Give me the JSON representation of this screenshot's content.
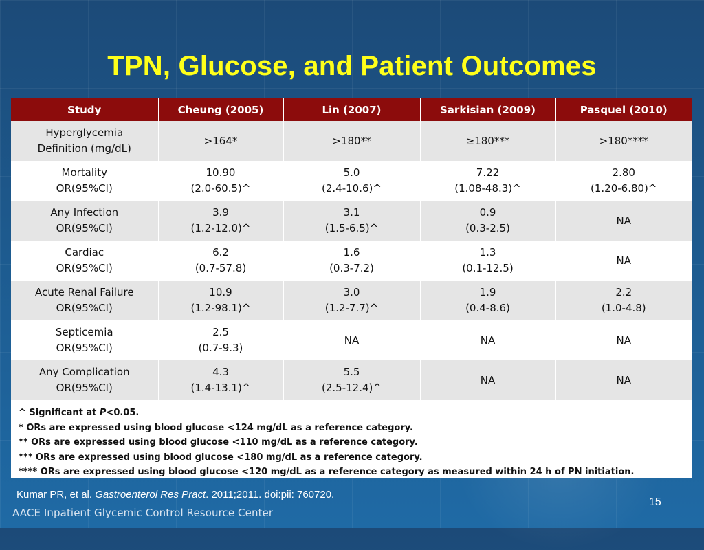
{
  "title": "TPN, Glucose, and Patient Outcomes",
  "table": {
    "headers": [
      "Study",
      "Cheung (2005)",
      "Lin (2007)",
      "Sarkisian (2009)",
      "Pasquel (2010)"
    ],
    "rows": [
      {
        "label": [
          "Hyperglycemia",
          "Definition (mg/dL)"
        ],
        "cells": [
          [
            ">164*"
          ],
          [
            ">180**"
          ],
          [
            "≥180***"
          ],
          [
            ">180****"
          ]
        ]
      },
      {
        "label": [
          "Mortality",
          "OR(95%CI)"
        ],
        "cells": [
          [
            "10.90",
            "(2.0-60.5)^"
          ],
          [
            "5.0",
            "(2.4-10.6)^"
          ],
          [
            "7.22",
            "(1.08-48.3)^"
          ],
          [
            "2.80",
            "(1.20-6.80)^"
          ]
        ]
      },
      {
        "label": [
          "Any Infection",
          "OR(95%CI)"
        ],
        "cells": [
          [
            "3.9",
            "(1.2-12.0)^"
          ],
          [
            "3.1",
            "(1.5-6.5)^"
          ],
          [
            "0.9",
            "(0.3-2.5)"
          ],
          [
            "NA"
          ]
        ]
      },
      {
        "label": [
          "Cardiac",
          "OR(95%CI)"
        ],
        "cells": [
          [
            "6.2",
            "(0.7-57.8)"
          ],
          [
            "1.6",
            "(0.3-7.2)"
          ],
          [
            "1.3",
            "(0.1-12.5)"
          ],
          [
            "NA"
          ]
        ]
      },
      {
        "label": [
          "Acute Renal Failure",
          "OR(95%CI)"
        ],
        "cells": [
          [
            "10.9",
            "(1.2-98.1)^"
          ],
          [
            "3.0",
            "(1.2-7.7)^"
          ],
          [
            "1.9",
            "(0.4-8.6)"
          ],
          [
            "2.2",
            "(1.0-4.8)"
          ]
        ]
      },
      {
        "label": [
          "Septicemia",
          "OR(95%CI)"
        ],
        "cells": [
          [
            "2.5",
            "(0.7-9.3)"
          ],
          [
            "NA"
          ],
          [
            "NA"
          ],
          [
            "NA"
          ]
        ]
      },
      {
        "label": [
          "Any Complication",
          "OR(95%CI)"
        ],
        "cells": [
          [
            "4.3",
            "(1.4-13.1)^"
          ],
          [
            "5.5",
            "(2.5-12.4)^"
          ],
          [
            "NA"
          ],
          [
            "NA"
          ]
        ]
      }
    ]
  },
  "footnotes": {
    "significance_prefix": "^ Significant at ",
    "significance_p": "P",
    "significance_suffix": "<0.05.",
    "lines": [
      "* ORs are expressed using blood glucose <124 mg/dL as a reference category.",
      "** ORs are expressed using blood glucose <110 mg/dL as a reference category.",
      "*** ORs are expressed using blood glucose <180 mg/dL as a reference category.",
      "**** ORs are expressed using blood glucose <120 mg/dL as a reference category as measured within 24 h of PN initiation."
    ]
  },
  "citation": {
    "authors": "Kumar PR, et al. ",
    "journal": "Gastroenterol Res Pract",
    "rest": ". 2011;2011. doi:pii: 760720."
  },
  "footer_brand": "AACE Inpatient Glycemic Control Resource Center",
  "page_number": "15",
  "colors": {
    "title": "#ffff1a",
    "header_bg": "#8c0c0c",
    "row_shade": "#e5e5e5",
    "background": "#1d5a8e"
  }
}
